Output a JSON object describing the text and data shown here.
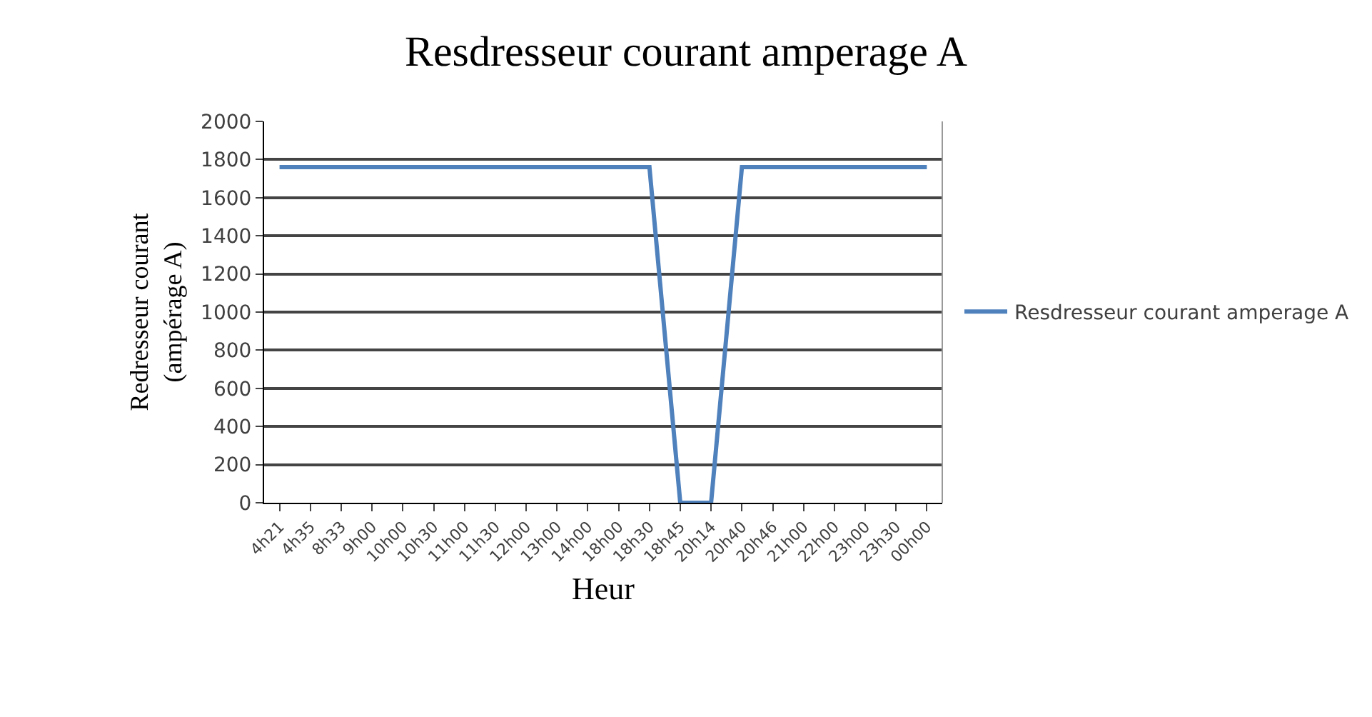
{
  "chart_data": {
    "type": "line",
    "title": "Resdresseur courant amperage A",
    "xlabel": "Heur",
    "ylabel": "Redresseur courant\n(ampérage A)",
    "categories": [
      "4h21",
      "4h35",
      "8h33",
      "9h00",
      "10h00",
      "10h30",
      "11h00",
      "11h30",
      "12h00",
      "13h00",
      "14h00",
      "18h00",
      "18h30",
      "18h45",
      "20h14",
      "20h40",
      "20h46",
      "21h00",
      "22h00",
      "23h00",
      "23h30",
      "00h00"
    ],
    "series": [
      {
        "name": "Resdresseur courant amperage A",
        "color": "#4f81bd",
        "values": [
          1760,
          1760,
          1760,
          1760,
          1760,
          1760,
          1760,
          1760,
          1760,
          1760,
          1760,
          1760,
          1760,
          0,
          0,
          1760,
          1760,
          1760,
          1760,
          1760,
          1760,
          1760
        ]
      }
    ],
    "ylim": [
      0,
      2000
    ],
    "yticks": [
      0,
      200,
      400,
      600,
      800,
      1000,
      1200,
      1400,
      1600,
      1800,
      2000
    ],
    "grid": "y",
    "legend": "right",
    "marker": "none",
    "line_style": "solid"
  }
}
